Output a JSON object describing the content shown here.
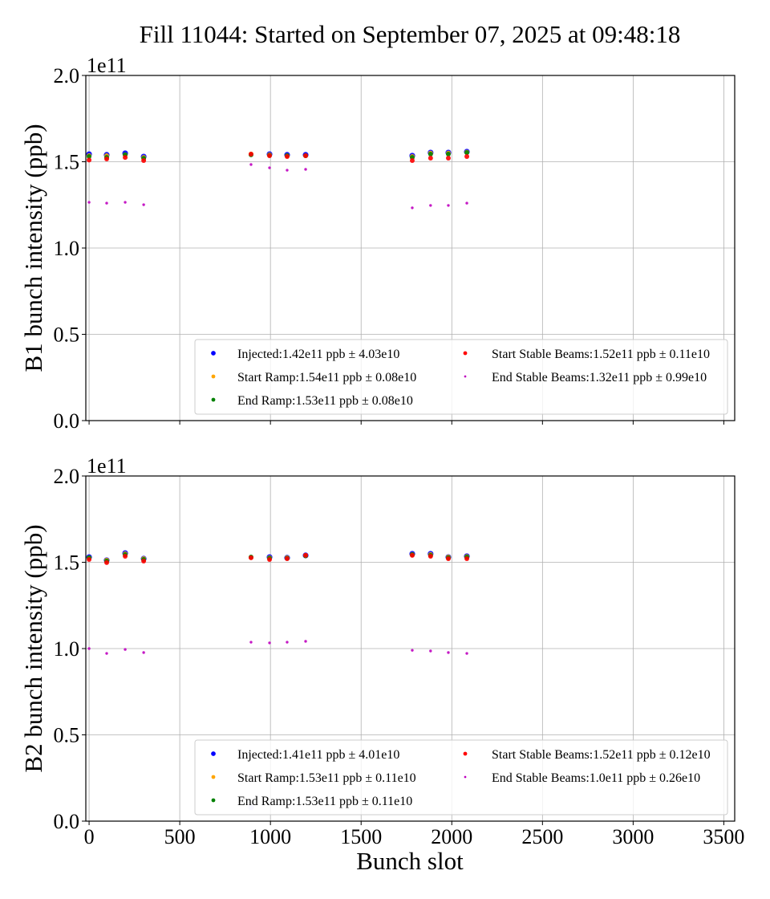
{
  "figure": {
    "title": "Fill 11044: Started on September 07, 2025 at 09:48:18",
    "xlabel": "Bunch slot"
  },
  "chart_data": [
    {
      "type": "scatter",
      "title": "Fill 11044: Started on September 07, 2025 at 09:48:18",
      "xlabel": "",
      "ylabel": "B1 bunch intensity (ppb)",
      "y_offset_label": "1e11",
      "xlim": [
        -18,
        3560
      ],
      "ylim": [
        0.0,
        2.0
      ],
      "xticks": [
        0,
        500,
        1000,
        1500,
        2000,
        2500,
        3000,
        3500
      ],
      "xtick_labels": [
        "",
        "",
        "",
        "",
        "",
        "",
        "",
        ""
      ],
      "yticks": [
        0.0,
        0.5,
        1.0,
        1.5,
        2.0
      ],
      "ytick_labels": [
        "0.0",
        "0.5",
        "1.0",
        "1.5",
        "2.0"
      ],
      "grid": true,
      "legend_position": "lower-right",
      "series": [
        {
          "name": "Injected",
          "label": "Injected:1.42e11 ppb ± 4.03e10",
          "color": "#0000ff",
          "marker_size": "large",
          "x": [
            0,
            97,
            199,
            301,
            893,
            995,
            1092,
            1194,
            1782,
            1883,
            1981,
            2083
          ],
          "y": [
            1.544,
            1.54,
            1.549,
            1.53,
            0.08,
            1.544,
            1.54,
            1.54,
            1.535,
            1.553,
            1.553,
            1.558
          ]
        },
        {
          "name": "Start Ramp",
          "label": "Start Ramp:1.54e11 ppb ± 0.08e10",
          "color": "#ffa500",
          "marker_size": "medium",
          "x": [
            0,
            97,
            199,
            301,
            893,
            995,
            1092,
            1194,
            1782,
            1883,
            1981,
            2083
          ],
          "y": [
            1.535,
            1.535,
            1.54,
            1.525,
            1.545,
            1.54,
            1.535,
            1.535,
            1.53,
            1.55,
            1.55,
            1.555
          ]
        },
        {
          "name": "End Ramp",
          "label": "End Ramp:1.53e11 ppb ± 0.08e10",
          "color": "#008000",
          "marker_size": "medium",
          "x": [
            0,
            97,
            199,
            301,
            893,
            995,
            1092,
            1194,
            1782,
            1883,
            1981,
            2083
          ],
          "y": [
            1.53,
            1.525,
            1.54,
            1.52,
            1.54,
            1.537,
            1.535,
            1.535,
            1.525,
            1.544,
            1.544,
            1.553
          ]
        },
        {
          "name": "Start Stable Beams",
          "label": "Start Stable Beams:1.52e11 ppb ± 0.11e10",
          "color": "#ff0000",
          "marker_size": "medium",
          "x": [
            0,
            97,
            199,
            301,
            893,
            995,
            1092,
            1194,
            1782,
            1883,
            1981,
            2083
          ],
          "y": [
            1.51,
            1.516,
            1.525,
            1.507,
            1.544,
            1.535,
            1.53,
            1.535,
            1.507,
            1.521,
            1.521,
            1.53
          ]
        },
        {
          "name": "End Stable Beams",
          "label": "End Stable Beams:1.32e11 ppb ± 0.99e10",
          "color": "#bf00bf",
          "marker_size": "small",
          "x": [
            0,
            97,
            199,
            301,
            893,
            995,
            1092,
            1194,
            1782,
            1883,
            1981,
            2083
          ],
          "y": [
            1.265,
            1.26,
            1.265,
            1.251,
            1.484,
            1.465,
            1.451,
            1.456,
            1.233,
            1.247,
            1.247,
            1.26
          ]
        }
      ]
    },
    {
      "type": "scatter",
      "title": "",
      "xlabel": "Bunch slot",
      "ylabel": "B2 bunch intensity (ppb)",
      "y_offset_label": "1e11",
      "xlim": [
        -18,
        3560
      ],
      "ylim": [
        0.0,
        2.0
      ],
      "xticks": [
        0,
        500,
        1000,
        1500,
        2000,
        2500,
        3000,
        3500
      ],
      "xtick_labels": [
        "0",
        "500",
        "1000",
        "1500",
        "2000",
        "2500",
        "3000",
        "3500"
      ],
      "yticks": [
        0.0,
        0.5,
        1.0,
        1.5,
        2.0
      ],
      "ytick_labels": [
        "0.0",
        "0.5",
        "1.0",
        "1.5",
        "2.0"
      ],
      "grid": true,
      "legend_position": "lower-right",
      "series": [
        {
          "name": "Injected",
          "label": "Injected:1.41e11 ppb ± 4.01e10",
          "color": "#0000ff",
          "marker_size": "large",
          "x": [
            0,
            97,
            199,
            301,
            893,
            995,
            1092,
            1194,
            1782,
            1883,
            1981,
            2083
          ],
          "y": [
            1.53,
            1.512,
            1.553,
            1.521,
            0.08,
            1.53,
            1.526,
            1.54,
            1.549,
            1.549,
            1.53,
            1.535
          ]
        },
        {
          "name": "Start Ramp",
          "label": "Start Ramp:1.53e11 ppb ± 0.11e10",
          "color": "#ffa500",
          "marker_size": "medium",
          "x": [
            0,
            97,
            199,
            301,
            893,
            995,
            1092,
            1194,
            1782,
            1883,
            1981,
            2083
          ],
          "y": [
            1.526,
            1.512,
            1.549,
            1.521,
            1.528,
            1.526,
            1.526,
            1.54,
            1.545,
            1.545,
            1.53,
            1.533
          ]
        },
        {
          "name": "End Ramp",
          "label": "End Ramp:1.53e11 ppb ± 0.11e10",
          "color": "#008000",
          "marker_size": "medium",
          "x": [
            0,
            97,
            199,
            301,
            893,
            995,
            1092,
            1194,
            1782,
            1883,
            1981,
            2083
          ],
          "y": [
            1.526,
            1.507,
            1.544,
            1.516,
            1.53,
            1.523,
            1.523,
            1.537,
            1.544,
            1.54,
            1.526,
            1.53
          ]
        },
        {
          "name": "Start Stable Beams",
          "label": "Start Stable Beams:1.52e11 ppb ± 0.12e10",
          "color": "#ff0000",
          "marker_size": "medium",
          "x": [
            0,
            97,
            199,
            301,
            893,
            995,
            1092,
            1194,
            1782,
            1883,
            1981,
            2083
          ],
          "y": [
            1.516,
            1.498,
            1.535,
            1.507,
            1.526,
            1.516,
            1.521,
            1.54,
            1.54,
            1.535,
            1.521,
            1.521
          ]
        },
        {
          "name": "End Stable Beams",
          "label": "End Stable Beams:1.0e11 ppb ± 0.26e10",
          "color": "#bf00bf",
          "marker_size": "small",
          "x": [
            0,
            97,
            199,
            301,
            893,
            995,
            1092,
            1194,
            1782,
            1883,
            1981,
            2083
          ],
          "y": [
            1.0,
            0.972,
            0.995,
            0.977,
            1.037,
            1.033,
            1.037,
            1.042,
            0.99,
            0.986,
            0.977,
            0.972
          ]
        }
      ]
    }
  ]
}
